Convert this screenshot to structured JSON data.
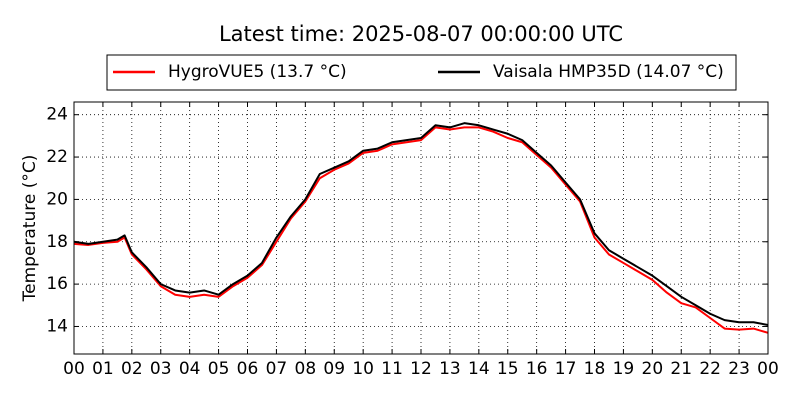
{
  "chart_data": {
    "type": "line",
    "title": "Latest time: 2025-08-07 00:00:00 UTC",
    "y_label": "Temperature (°C)",
    "x": [
      0,
      0.5,
      1,
      1.5,
      1.75,
      2,
      2.5,
      3,
      3.5,
      4,
      4.5,
      5,
      5.5,
      6,
      6.5,
      7,
      7.5,
      8,
      8.5,
      9,
      9.5,
      10,
      10.5,
      11,
      11.5,
      12,
      12.5,
      13,
      13.5,
      14,
      14.5,
      15,
      15.5,
      16,
      16.5,
      17,
      17.5,
      18,
      18.5,
      19,
      19.5,
      20,
      20.5,
      21,
      21.5,
      22,
      22.5,
      23,
      23.5,
      24
    ],
    "series": [
      {
        "name": "HygroVUE5 (13.7 °C)",
        "color": "#ff0000",
        "values": [
          17.9,
          17.85,
          17.95,
          18.0,
          18.2,
          17.4,
          16.7,
          15.9,
          15.5,
          15.4,
          15.5,
          15.4,
          15.9,
          16.3,
          16.9,
          18.0,
          19.1,
          19.9,
          21.0,
          21.4,
          21.7,
          22.2,
          22.3,
          22.6,
          22.7,
          22.8,
          23.4,
          23.3,
          23.4,
          23.4,
          23.2,
          22.9,
          22.7,
          22.1,
          21.5,
          20.7,
          19.9,
          18.2,
          17.4,
          17.0,
          16.6,
          16.2,
          15.6,
          15.1,
          14.9,
          14.4,
          13.9,
          13.85,
          13.9,
          13.7
        ]
      },
      {
        "name": "Vaisala HMP35D (14.07 °C)",
        "color": "#000000",
        "values": [
          18.0,
          17.9,
          18.0,
          18.1,
          18.3,
          17.5,
          16.8,
          16.0,
          15.7,
          15.6,
          15.7,
          15.5,
          16.0,
          16.4,
          17.0,
          18.2,
          19.2,
          20.0,
          21.2,
          21.5,
          21.8,
          22.3,
          22.4,
          22.7,
          22.8,
          22.9,
          23.5,
          23.4,
          23.6,
          23.5,
          23.3,
          23.1,
          22.8,
          22.2,
          21.6,
          20.8,
          20.0,
          18.4,
          17.6,
          17.2,
          16.8,
          16.4,
          15.9,
          15.4,
          15.0,
          14.6,
          14.3,
          14.2,
          14.2,
          14.07
        ]
      }
    ],
    "xlim": [
      0,
      24
    ],
    "xticks": [
      {
        "value": 0,
        "label": "00"
      },
      {
        "value": 1,
        "label": "01"
      },
      {
        "value": 2,
        "label": "02"
      },
      {
        "value": 3,
        "label": "03"
      },
      {
        "value": 4,
        "label": "04"
      },
      {
        "value": 5,
        "label": "05"
      },
      {
        "value": 6,
        "label": "06"
      },
      {
        "value": 7,
        "label": "07"
      },
      {
        "value": 8,
        "label": "08"
      },
      {
        "value": 9,
        "label": "09"
      },
      {
        "value": 10,
        "label": "10"
      },
      {
        "value": 11,
        "label": "11"
      },
      {
        "value": 12,
        "label": "12"
      },
      {
        "value": 13,
        "label": "13"
      },
      {
        "value": 14,
        "label": "14"
      },
      {
        "value": 15,
        "label": "15"
      },
      {
        "value": 16,
        "label": "16"
      },
      {
        "value": 17,
        "label": "17"
      },
      {
        "value": 18,
        "label": "18"
      },
      {
        "value": 19,
        "label": "19"
      },
      {
        "value": 20,
        "label": "20"
      },
      {
        "value": 21,
        "label": "21"
      },
      {
        "value": 22,
        "label": "22"
      },
      {
        "value": 23,
        "label": "23"
      },
      {
        "value": 24,
        "label": "00"
      }
    ],
    "ylim": [
      12.7,
      24.6
    ],
    "yticks": [
      14,
      16,
      18,
      20,
      22,
      24
    ],
    "grid": true
  }
}
